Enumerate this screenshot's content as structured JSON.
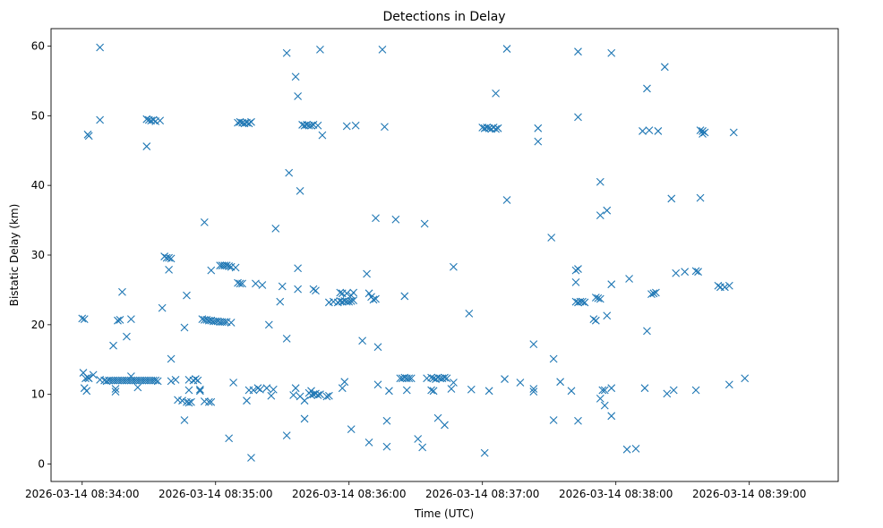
{
  "chart_data": {
    "type": "scatter",
    "title": "Detections in Delay",
    "xlabel": "Time (UTC)",
    "ylabel": "Bistatic Delay (km)",
    "marker": "x",
    "color": "#1f77b4",
    "x_units": "seconds after 2026-03-14 08:34:00",
    "xlim": [
      -14,
      340
    ],
    "ylim": [
      -2.5,
      62.5
    ],
    "x_ticks": [
      {
        "value": 0,
        "label": "2026-03-14 08:34:00"
      },
      {
        "value": 60,
        "label": "2026-03-14 08:35:00"
      },
      {
        "value": 120,
        "label": "2026-03-14 08:36:00"
      },
      {
        "value": 180,
        "label": "2026-03-14 08:37:00"
      },
      {
        "value": 240,
        "label": "2026-03-14 08:38:00"
      },
      {
        "value": 300,
        "label": "2026-03-14 08:39:00"
      }
    ],
    "y_ticks": [
      {
        "value": 0,
        "label": "0"
      },
      {
        "value": 10,
        "label": "10"
      },
      {
        "value": 20,
        "label": "20"
      },
      {
        "value": 30,
        "label": "30"
      },
      {
        "value": 40,
        "label": "40"
      },
      {
        "value": 50,
        "label": "50"
      },
      {
        "value": 60,
        "label": "60"
      }
    ],
    "points": [
      [
        0,
        20.9
      ],
      [
        1,
        20.8
      ],
      [
        1,
        10.9
      ],
      [
        0.5,
        13.1
      ],
      [
        1.5,
        12.3
      ],
      [
        2.5,
        12.4
      ],
      [
        3,
        12.3
      ],
      [
        2,
        10.5
      ],
      [
        2.5,
        47.3
      ],
      [
        3,
        47.1
      ],
      [
        5,
        12.8
      ],
      [
        8,
        59.8
      ],
      [
        8,
        49.4
      ],
      [
        8,
        12.1
      ],
      [
        10,
        12
      ],
      [
        11,
        11.9
      ],
      [
        12,
        12
      ],
      [
        13,
        12
      ],
      [
        14,
        12
      ],
      [
        15,
        12
      ],
      [
        16,
        12
      ],
      [
        17,
        12
      ],
      [
        18,
        12
      ],
      [
        19,
        12
      ],
      [
        20,
        12
      ],
      [
        21,
        12
      ],
      [
        22,
        12
      ],
      [
        23,
        12
      ],
      [
        24,
        12
      ],
      [
        25,
        12
      ],
      [
        26,
        12
      ],
      [
        27,
        12
      ],
      [
        28,
        12
      ],
      [
        29,
        12
      ],
      [
        30,
        12
      ],
      [
        31,
        12
      ],
      [
        32,
        12
      ],
      [
        33,
        12
      ],
      [
        34,
        11.9
      ],
      [
        15,
        10.8
      ],
      [
        15,
        10.4
      ],
      [
        14,
        17
      ],
      [
        16,
        20.6
      ],
      [
        17,
        20.7
      ],
      [
        18,
        24.7
      ],
      [
        20,
        18.3
      ],
      [
        22,
        20.8
      ],
      [
        22,
        12.6
      ],
      [
        25,
        11
      ],
      [
        29,
        49.5
      ],
      [
        30,
        49.4
      ],
      [
        31,
        49.3
      ],
      [
        32,
        49.4
      ],
      [
        33,
        49.2
      ],
      [
        35,
        49.3
      ],
      [
        29,
        45.6
      ],
      [
        36,
        22.4
      ],
      [
        37,
        29.8
      ],
      [
        38,
        29.6
      ],
      [
        39,
        29.6
      ],
      [
        40,
        29.5
      ],
      [
        39,
        27.9
      ],
      [
        40,
        11.9
      ],
      [
        40,
        15.1
      ],
      [
        42,
        12.1
      ],
      [
        43,
        9.2
      ],
      [
        45,
        9.1
      ],
      [
        46,
        6.3
      ],
      [
        47,
        8.9
      ],
      [
        48,
        8.8
      ],
      [
        49,
        8.9
      ],
      [
        46,
        19.6
      ],
      [
        47,
        24.2
      ],
      [
        48,
        10.6
      ],
      [
        48,
        12.1
      ],
      [
        50,
        12
      ],
      [
        51,
        12.2
      ],
      [
        52,
        12
      ],
      [
        53,
        10.7
      ],
      [
        53,
        10.5
      ],
      [
        55,
        9
      ],
      [
        55,
        34.7
      ],
      [
        57,
        8.9
      ],
      [
        58,
        8.9
      ],
      [
        58,
        27.8
      ],
      [
        54,
        20.8
      ],
      [
        55,
        20.7
      ],
      [
        56,
        20.7
      ],
      [
        57,
        20.6
      ],
      [
        58,
        20.6
      ],
      [
        59,
        20.5
      ],
      [
        60,
        20.5
      ],
      [
        61,
        20.5
      ],
      [
        62,
        20.4
      ],
      [
        63,
        20.4
      ],
      [
        64,
        20.4
      ],
      [
        65,
        20.4
      ],
      [
        67,
        20.3
      ],
      [
        62,
        28.5
      ],
      [
        63,
        28.5
      ],
      [
        64,
        28.5
      ],
      [
        65,
        28.5
      ],
      [
        66,
        28.4
      ],
      [
        67,
        28.3
      ],
      [
        69,
        28.2
      ],
      [
        66,
        3.7
      ],
      [
        68,
        11.7
      ],
      [
        70,
        26
      ],
      [
        71,
        25.9
      ],
      [
        72,
        25.9
      ],
      [
        70,
        49
      ],
      [
        71,
        49.1
      ],
      [
        72,
        49
      ],
      [
        73,
        48.9
      ],
      [
        74,
        49
      ],
      [
        75,
        48.9
      ],
      [
        76,
        49.1
      ],
      [
        74,
        9.1
      ],
      [
        75,
        10.6
      ],
      [
        77,
        10.6
      ],
      [
        76,
        0.9
      ],
      [
        79,
        10.9
      ],
      [
        80,
        10.7
      ],
      [
        78,
        25.9
      ],
      [
        81,
        25.7
      ],
      [
        83,
        10.9
      ],
      [
        85,
        9.8
      ],
      [
        84,
        20
      ],
      [
        86,
        10.7
      ],
      [
        87,
        33.8
      ],
      [
        89,
        23.3
      ],
      [
        90,
        25.5
      ],
      [
        92,
        59
      ],
      [
        92,
        4.1
      ],
      [
        92,
        18
      ],
      [
        93,
        41.8
      ],
      [
        95,
        9.9
      ],
      [
        96,
        10.9
      ],
      [
        96,
        55.6
      ],
      [
        97,
        52.8
      ],
      [
        97,
        28.1
      ],
      [
        97,
        25.1
      ],
      [
        98,
        39.2
      ],
      [
        98,
        9.7
      ],
      [
        99,
        48.7
      ],
      [
        100,
        48.6
      ],
      [
        101,
        48.7
      ],
      [
        102,
        48.6
      ],
      [
        103,
        48.6
      ],
      [
        104,
        48.7
      ],
      [
        100,
        9.1
      ],
      [
        100,
        6.5
      ],
      [
        102,
        10.2
      ],
      [
        103,
        10.5
      ],
      [
        103,
        9.9
      ],
      [
        104,
        10
      ],
      [
        105,
        10.1
      ],
      [
        106,
        9.9
      ],
      [
        107,
        10
      ],
      [
        104,
        25.1
      ],
      [
        105,
        24.9
      ],
      [
        106,
        48.6
      ],
      [
        107,
        59.5
      ],
      [
        108,
        47.2
      ],
      [
        110,
        9.7
      ],
      [
        111,
        9.8
      ],
      [
        111,
        23.2
      ],
      [
        113,
        23.3
      ],
      [
        115,
        23.2
      ],
      [
        116,
        23.4
      ],
      [
        117,
        23.3
      ],
      [
        118,
        23.4
      ],
      [
        119,
        23.3
      ],
      [
        120,
        23.3
      ],
      [
        121,
        23.4
      ],
      [
        122,
        23.5
      ],
      [
        116,
        24.6
      ],
      [
        117,
        24.5
      ],
      [
        119,
        24.5
      ],
      [
        121,
        24.2
      ],
      [
        122,
        24.6
      ],
      [
        117,
        10.9
      ],
      [
        118,
        11.8
      ],
      [
        119,
        48.5
      ],
      [
        121,
        5
      ],
      [
        123,
        48.6
      ],
      [
        126,
        17.7
      ],
      [
        128,
        27.3
      ],
      [
        129,
        24.5
      ],
      [
        130,
        24
      ],
      [
        131,
        23.6
      ],
      [
        132,
        23.7
      ],
      [
        129,
        3.1
      ],
      [
        132,
        35.3
      ],
      [
        133,
        16.8
      ],
      [
        133,
        11.4
      ],
      [
        135,
        59.5
      ],
      [
        136,
        48.4
      ],
      [
        137,
        6.2
      ],
      [
        137,
        2.5
      ],
      [
        138,
        10.5
      ],
      [
        141,
        35.1
      ],
      [
        143,
        12.3
      ],
      [
        144,
        12.3
      ],
      [
        145,
        12.4
      ],
      [
        146,
        12.3
      ],
      [
        147,
        12.3
      ],
      [
        145,
        24.1
      ],
      [
        146,
        10.6
      ],
      [
        148,
        12.3
      ],
      [
        151,
        3.6
      ],
      [
        153,
        2.4
      ],
      [
        154,
        34.5
      ],
      [
        155,
        12.3
      ],
      [
        157,
        12.4
      ],
      [
        158,
        12.3
      ],
      [
        159,
        12.2
      ],
      [
        160,
        12.4
      ],
      [
        161,
        12.3
      ],
      [
        162,
        12.3
      ],
      [
        163,
        12.4
      ],
      [
        164,
        12.3
      ],
      [
        157,
        10.6
      ],
      [
        158,
        10.5
      ],
      [
        160,
        6.6
      ],
      [
        163,
        5.6
      ],
      [
        166,
        10.8
      ],
      [
        167,
        11.7
      ],
      [
        167,
        28.3
      ],
      [
        174,
        21.6
      ],
      [
        175,
        10.7
      ],
      [
        180,
        48.3
      ],
      [
        181,
        48.2
      ],
      [
        182,
        48.3
      ],
      [
        183,
        48.2
      ],
      [
        184,
        48.1
      ],
      [
        185,
        48.3
      ],
      [
        186,
        48.1
      ],
      [
        187,
        48.2
      ],
      [
        181,
        1.6
      ],
      [
        183,
        10.5
      ],
      [
        186,
        53.2
      ],
      [
        190,
        12.2
      ],
      [
        191,
        59.6
      ],
      [
        191,
        37.9
      ],
      [
        197,
        11.7
      ],
      [
        203,
        10.8
      ],
      [
        203,
        10.4
      ],
      [
        203,
        17.2
      ],
      [
        205,
        48.2
      ],
      [
        205,
        46.3
      ],
      [
        211,
        32.5
      ],
      [
        212,
        6.3
      ],
      [
        212,
        15.1
      ],
      [
        215,
        11.8
      ],
      [
        220,
        10.5
      ],
      [
        222,
        26.1
      ],
      [
        222,
        27.8
      ],
      [
        223,
        28
      ],
      [
        222,
        23.3
      ],
      [
        223,
        23.2
      ],
      [
        224,
        23.3
      ],
      [
        225,
        23.3
      ],
      [
        226,
        23.2
      ],
      [
        223,
        59.2
      ],
      [
        223,
        49.8
      ],
      [
        223,
        6.2
      ],
      [
        230,
        20.8
      ],
      [
        231,
        20.6
      ],
      [
        231,
        23.9
      ],
      [
        232,
        23.8
      ],
      [
        233,
        23.7
      ],
      [
        233,
        40.5
      ],
      [
        233,
        35.7
      ],
      [
        233,
        9.4
      ],
      [
        234,
        10.6
      ],
      [
        235,
        10.6
      ],
      [
        235,
        8.4
      ],
      [
        236,
        21.3
      ],
      [
        236,
        36.4
      ],
      [
        238,
        6.9
      ],
      [
        238,
        10.9
      ],
      [
        238,
        25.8
      ],
      [
        238,
        59
      ],
      [
        246,
        26.6
      ],
      [
        245,
        2.1
      ],
      [
        249,
        2.2
      ],
      [
        252,
        47.8
      ],
      [
        253,
        10.9
      ],
      [
        254,
        53.9
      ],
      [
        254,
        19.1
      ],
      [
        255,
        47.9
      ],
      [
        256,
        24.4
      ],
      [
        257,
        24.5
      ],
      [
        258,
        24.6
      ],
      [
        259,
        47.8
      ],
      [
        262,
        57
      ],
      [
        263,
        10.1
      ],
      [
        265,
        38.1
      ],
      [
        266,
        10.6
      ],
      [
        267,
        27.4
      ],
      [
        271,
        27.6
      ],
      [
        276,
        27.7
      ],
      [
        277,
        27.6
      ],
      [
        276,
        10.6
      ],
      [
        278,
        47.9
      ],
      [
        279,
        47.4
      ],
      [
        279,
        47.8
      ],
      [
        278,
        38.2
      ],
      [
        280,
        47.6
      ],
      [
        286,
        25.6
      ],
      [
        287,
        25.4
      ],
      [
        289,
        25.4
      ],
      [
        291,
        25.6
      ],
      [
        291,
        11.4
      ],
      [
        293,
        47.6
      ],
      [
        298,
        12.3
      ]
    ]
  }
}
